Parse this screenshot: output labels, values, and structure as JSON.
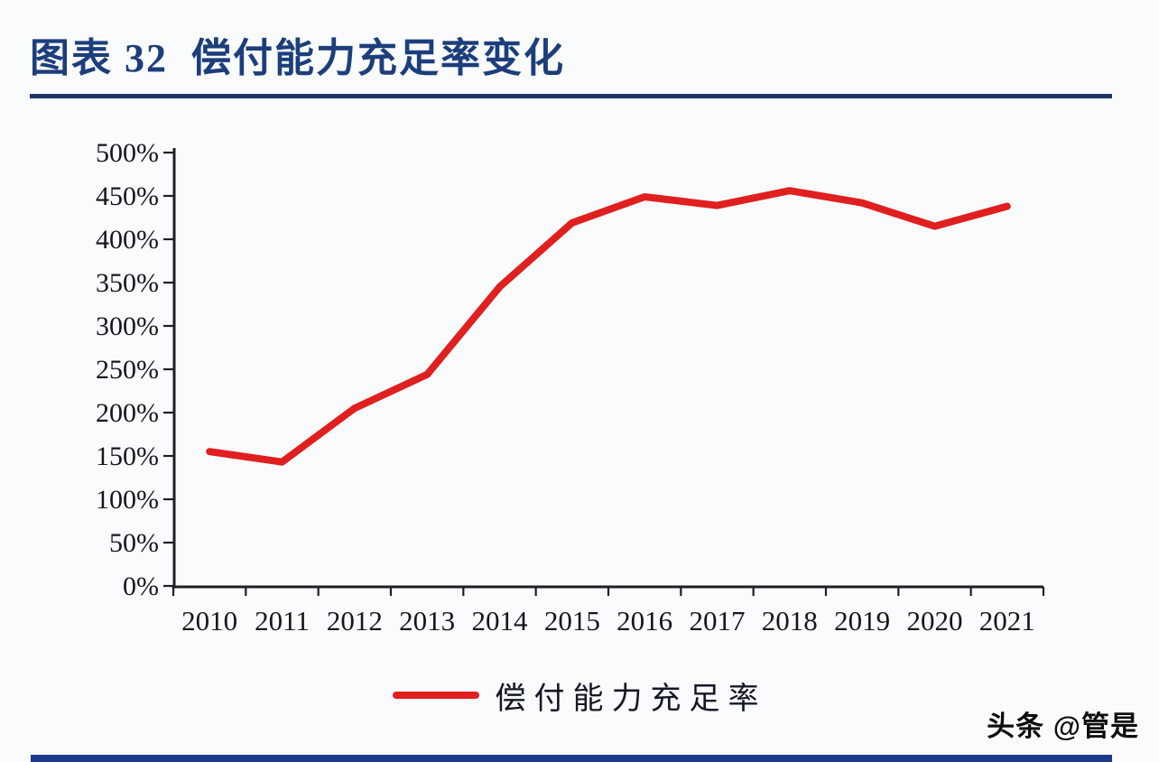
{
  "page": {
    "background_color": "#fafbfd"
  },
  "header": {
    "title": "图表 32  偿付能力充足率变化",
    "title_color": "#1c3e7c",
    "rule_color": "#1b3569"
  },
  "chart_data": {
    "type": "line",
    "title": "偿付能力充足率变化",
    "xlabel": "",
    "ylabel": "",
    "categories": [
      "2010",
      "2011",
      "2012",
      "2013",
      "2014",
      "2015",
      "2016",
      "2017",
      "2018",
      "2019",
      "2020",
      "2021"
    ],
    "series": [
      {
        "name": "偿付能力充足率",
        "color": "#e01f1f",
        "values": [
          155,
          143,
          205,
          244,
          345,
          419,
          449,
          439,
          456,
          442,
          415,
          438
        ]
      }
    ],
    "y_tick_labels": [
      "0%",
      "50%",
      "100%",
      "150%",
      "200%",
      "250%",
      "300%",
      "350%",
      "400%",
      "450%",
      "500%"
    ],
    "ylim": [
      0,
      500
    ],
    "y_step": 50,
    "grid": false,
    "legend_position": "bottom",
    "axis_color": "#1f1f23",
    "tick_label_color": "#15151f"
  },
  "legend": {
    "label": "偿付能力充足率",
    "swatch_color": "#e01f1f"
  },
  "footer": {
    "watermark": "头条 @管是",
    "bar_color": "#1b3a8c"
  }
}
